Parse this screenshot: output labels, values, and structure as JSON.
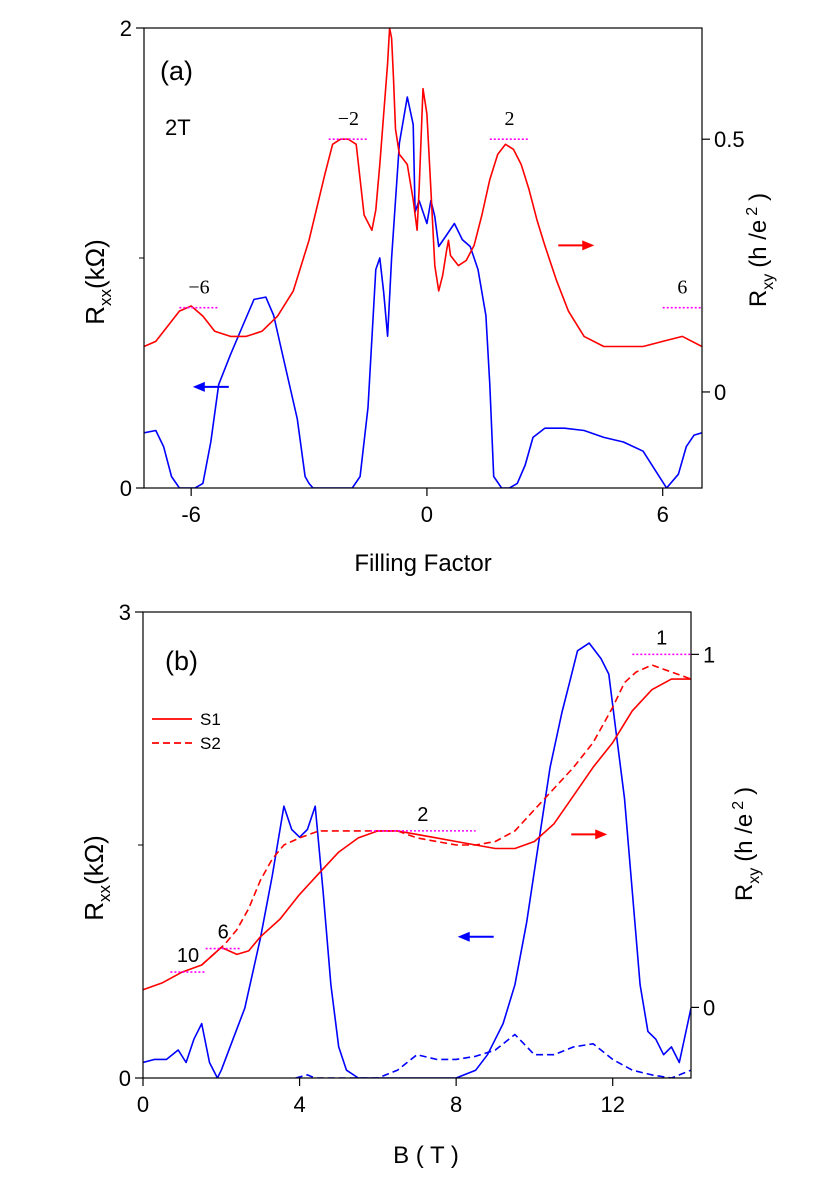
{
  "chart_data": [
    {
      "type": "line",
      "panel_label": "(a)",
      "field_label": "2T",
      "xlabel": "Filling Factor",
      "ylabel_left": "R",
      "ylabel_left_sub": "xx",
      "ylabel_left_unit": "(kΩ)",
      "ylabel_right": "R",
      "ylabel_right_sub": "xy",
      "ylabel_right_unit": "(h /e",
      "ylabel_right_sup": "2",
      "ylabel_right_close": ")",
      "xlim": [
        -7.2,
        7.0
      ],
      "ylim_left": [
        0,
        2
      ],
      "ylim_right": [
        -0.19,
        0.72
      ],
      "x_ticks": [
        -6,
        0,
        6
      ],
      "x_tick_labels": [
        "-6",
        "0",
        "6"
      ],
      "y_left_ticks": [
        0,
        2
      ],
      "y_left_tick_labels": [
        "0",
        "2"
      ],
      "y_right_ticks": [
        0,
        0.5
      ],
      "y_right_tick_labels": [
        "0",
        "0.5"
      ],
      "plateaus": [
        {
          "nu": -6,
          "label": "−6",
          "value": 0.1667,
          "x_from": -6.3,
          "x_to": -5.3
        },
        {
          "nu": -2,
          "label": "−2",
          "value": 0.5,
          "x_from": -2.5,
          "x_to": -1.5
        },
        {
          "nu": 2,
          "label": "2",
          "value": 0.5,
          "x_from": 1.6,
          "x_to": 2.6
        },
        {
          "nu": 6,
          "label": "6",
          "value": 0.1667,
          "x_from": 6.0,
          "x_to": 7.0
        }
      ],
      "series": [
        {
          "name": "Rxx",
          "axis": "left",
          "color": "#0000ff",
          "style": "solid",
          "x": [
            -7.2,
            -6.9,
            -6.7,
            -6.5,
            -6.3,
            -6.1,
            -5.9,
            -5.7,
            -5.5,
            -5.3,
            -5.0,
            -4.7,
            -4.4,
            -4.1,
            -3.9,
            -3.7,
            -3.5,
            -3.3,
            -3.1,
            -3.0,
            -2.9,
            -2.7,
            -2.5,
            -2.2,
            -1.9,
            -1.7,
            -1.5,
            -1.3,
            -1.2,
            -1.1,
            -1.0,
            -0.9,
            -0.7,
            -0.5,
            -0.35,
            -0.3,
            -0.2,
            -0.1,
            0.0,
            0.1,
            0.2,
            0.3,
            0.5,
            0.7,
            0.9,
            1.1,
            1.3,
            1.5,
            1.6,
            1.7,
            1.9,
            2.1,
            2.3,
            2.5,
            2.7,
            3.0,
            3.5,
            4.0,
            4.5,
            5.0,
            5.5,
            5.8,
            6.1,
            6.4,
            6.6,
            6.8,
            7.0
          ],
          "y": [
            0.24,
            0.25,
            0.18,
            0.05,
            0.0,
            0.0,
            0.0,
            0.02,
            0.2,
            0.45,
            0.58,
            0.7,
            0.82,
            0.83,
            0.75,
            0.6,
            0.45,
            0.3,
            0.05,
            0.02,
            0.0,
            0.0,
            0.0,
            0.0,
            0.0,
            0.05,
            0.35,
            0.95,
            1.0,
            0.85,
            0.66,
            1.0,
            1.5,
            1.7,
            1.58,
            1.2,
            1.25,
            1.2,
            1.15,
            1.25,
            1.18,
            1.05,
            1.1,
            1.15,
            1.08,
            1.05,
            0.95,
            0.75,
            0.45,
            0.05,
            0.0,
            0.0,
            0.02,
            0.1,
            0.22,
            0.26,
            0.26,
            0.25,
            0.22,
            0.2,
            0.16,
            0.08,
            0.0,
            0.06,
            0.18,
            0.23,
            0.24
          ]
        },
        {
          "name": "Rxy",
          "axis": "right",
          "color": "#ff0000",
          "style": "solid",
          "x": [
            -7.2,
            -6.9,
            -6.6,
            -6.3,
            -6.0,
            -5.7,
            -5.4,
            -5.0,
            -4.6,
            -4.2,
            -3.8,
            -3.4,
            -3.0,
            -2.6,
            -2.4,
            -2.2,
            -2.0,
            -1.8,
            -1.6,
            -1.4,
            -1.3,
            -1.2,
            -1.0,
            -0.95,
            -0.9,
            -0.85,
            -0.8,
            -0.7,
            -0.6,
            -0.5,
            -0.35,
            -0.25,
            -0.2,
            -0.1,
            0.0,
            0.1,
            0.2,
            0.3,
            0.4,
            0.5,
            0.55,
            0.6,
            0.8,
            1.0,
            1.2,
            1.4,
            1.6,
            1.8,
            2.0,
            2.2,
            2.4,
            2.6,
            2.8,
            3.0,
            3.3,
            3.6,
            4.0,
            4.5,
            5.0,
            5.5,
            6.0,
            6.5,
            7.0
          ],
          "y": [
            0.09,
            0.1,
            0.13,
            0.16,
            0.17,
            0.15,
            0.12,
            0.11,
            0.11,
            0.12,
            0.15,
            0.2,
            0.3,
            0.43,
            0.49,
            0.5,
            0.5,
            0.49,
            0.35,
            0.32,
            0.36,
            0.45,
            0.65,
            0.72,
            0.7,
            0.62,
            0.52,
            0.47,
            0.46,
            0.45,
            0.38,
            0.32,
            0.4,
            0.6,
            0.55,
            0.4,
            0.25,
            0.2,
            0.23,
            0.28,
            0.3,
            0.27,
            0.25,
            0.26,
            0.29,
            0.35,
            0.42,
            0.47,
            0.49,
            0.48,
            0.45,
            0.4,
            0.34,
            0.29,
            0.22,
            0.16,
            0.11,
            0.09,
            0.09,
            0.09,
            0.1,
            0.11,
            0.09
          ]
        }
      ],
      "arrows": [
        {
          "points_to": "left",
          "color": "#0000ff",
          "x": -5.5,
          "y_right": 0.01
        },
        {
          "points_to": "right",
          "color": "#ff0000",
          "x": 3.8,
          "y_right": 0.29
        }
      ]
    },
    {
      "type": "line",
      "panel_label": "(b)",
      "xlabel": "B ( T )",
      "ylabel_left": "R",
      "ylabel_left_sub": "xx",
      "ylabel_left_unit": "(kΩ)",
      "ylabel_right": "R",
      "ylabel_right_sub": "xy",
      "ylabel_right_unit": "(h /e",
      "ylabel_right_sup": "2",
      "ylabel_right_close": ")",
      "xlim": [
        0,
        14
      ],
      "ylim_left": [
        0,
        3
      ],
      "ylim_right": [
        -0.2,
        1.12
      ],
      "x_ticks": [
        0,
        4,
        8,
        12
      ],
      "x_tick_labels": [
        "0",
        "4",
        "8",
        "12"
      ],
      "y_left_ticks": [
        0,
        3
      ],
      "y_left_tick_labels": [
        "0",
        "3"
      ],
      "y_right_ticks": [
        0,
        1
      ],
      "y_right_tick_labels": [
        "0",
        "1"
      ],
      "legend": [
        {
          "label": "S1",
          "color": "#ff0000",
          "style": "solid"
        },
        {
          "label": "S2",
          "color": "#ff0000",
          "style": "dashed"
        }
      ],
      "plateaus": [
        {
          "nu": 10,
          "label": "10",
          "value": 0.1,
          "x_from": 0.7,
          "x_to": 1.6
        },
        {
          "nu": 6,
          "label": "6",
          "value": 0.1667,
          "x_from": 1.6,
          "x_to": 2.5
        },
        {
          "nu": 2,
          "label": "2",
          "value": 0.5,
          "x_from": 5.8,
          "x_to": 8.5
        },
        {
          "nu": 1,
          "label": "1",
          "value": 1.0,
          "x_from": 12.5,
          "x_to": 14.0
        }
      ],
      "series": [
        {
          "name": "S1 Rxx",
          "axis": "left",
          "color": "#0000ff",
          "style": "solid",
          "x": [
            0.0,
            0.3,
            0.6,
            0.9,
            1.1,
            1.3,
            1.5,
            1.7,
            1.9,
            2.0,
            2.3,
            2.6,
            3.0,
            3.3,
            3.6,
            3.8,
            4.0,
            4.2,
            4.4,
            4.6,
            4.8,
            5.0,
            5.2,
            5.5,
            6.0,
            7.0,
            8.0,
            8.5,
            8.8,
            9.0,
            9.2,
            9.5,
            9.8,
            10.1,
            10.4,
            10.7,
            10.9,
            11.1,
            11.4,
            11.7,
            11.9,
            12.1,
            12.3,
            12.5,
            12.7,
            12.9,
            13.1,
            13.3,
            13.5,
            13.7,
            14.0
          ],
          "y": [
            0.1,
            0.12,
            0.12,
            0.18,
            0.1,
            0.25,
            0.35,
            0.1,
            0.0,
            0.05,
            0.25,
            0.45,
            0.9,
            1.3,
            1.75,
            1.6,
            1.55,
            1.6,
            1.75,
            1.2,
            0.6,
            0.2,
            0.05,
            0.0,
            0.0,
            0.0,
            0.0,
            0.05,
            0.15,
            0.25,
            0.35,
            0.6,
            1.0,
            1.5,
            2.0,
            2.35,
            2.55,
            2.75,
            2.8,
            2.7,
            2.6,
            2.2,
            1.8,
            1.2,
            0.6,
            0.3,
            0.25,
            0.15,
            0.2,
            0.1,
            0.45
          ]
        },
        {
          "name": "S2 Rxx",
          "axis": "left",
          "color": "#0000ff",
          "style": "dashed",
          "x": [
            3.9,
            4.2,
            4.4,
            4.6,
            5.0,
            5.5,
            6.0,
            6.5,
            7.0,
            7.5,
            8.0,
            8.5,
            9.0,
            9.5,
            10.0,
            10.5,
            11.0,
            11.5,
            12.0,
            12.5,
            13.0,
            13.5,
            14.0
          ],
          "y": [
            0.0,
            0.02,
            0.0,
            0.0,
            0.0,
            0.0,
            0.0,
            0.05,
            0.15,
            0.12,
            0.12,
            0.14,
            0.18,
            0.28,
            0.15,
            0.15,
            0.2,
            0.22,
            0.12,
            0.05,
            0.02,
            0.0,
            0.05
          ]
        },
        {
          "name": "S1",
          "axis": "right",
          "color": "#ff0000",
          "style": "solid",
          "x": [
            0.0,
            0.5,
            1.0,
            1.5,
            1.8,
            2.0,
            2.2,
            2.4,
            2.7,
            3.0,
            3.5,
            4.0,
            4.5,
            5.0,
            5.5,
            6.0,
            6.5,
            7.0,
            7.5,
            8.0,
            8.5,
            9.0,
            9.5,
            10.0,
            10.5,
            11.0,
            11.5,
            12.0,
            12.5,
            13.0,
            13.5,
            14.0
          ],
          "y": [
            0.05,
            0.07,
            0.1,
            0.12,
            0.15,
            0.17,
            0.16,
            0.15,
            0.16,
            0.2,
            0.25,
            0.32,
            0.38,
            0.44,
            0.48,
            0.5,
            0.5,
            0.49,
            0.48,
            0.47,
            0.46,
            0.45,
            0.45,
            0.47,
            0.52,
            0.6,
            0.68,
            0.75,
            0.84,
            0.9,
            0.93,
            0.93
          ]
        },
        {
          "name": "S2",
          "axis": "right",
          "color": "#ff0000",
          "style": "dashed",
          "x": [
            1.5,
            1.8,
            2.1,
            2.4,
            2.7,
            3.0,
            3.3,
            3.6,
            4.0,
            4.5,
            5.0,
            5.5,
            6.0,
            6.5,
            7.0,
            7.5,
            8.0,
            8.5,
            9.0,
            9.5,
            10.0,
            10.5,
            11.0,
            11.5,
            12.0,
            12.3,
            12.6,
            13.0,
            13.5,
            14.0
          ],
          "y": [
            0.12,
            0.15,
            0.18,
            0.22,
            0.28,
            0.36,
            0.42,
            0.46,
            0.48,
            0.5,
            0.5,
            0.5,
            0.5,
            0.5,
            0.48,
            0.47,
            0.46,
            0.46,
            0.47,
            0.5,
            0.56,
            0.62,
            0.68,
            0.75,
            0.85,
            0.92,
            0.95,
            0.97,
            0.95,
            0.93
          ]
        }
      ],
      "arrows": [
        {
          "points_to": "left",
          "color": "#0000ff",
          "x": 8.5,
          "y_right": 0.2
        },
        {
          "points_to": "right",
          "color": "#ff0000",
          "x": 11.4,
          "y_right": 0.49
        }
      ]
    }
  ]
}
